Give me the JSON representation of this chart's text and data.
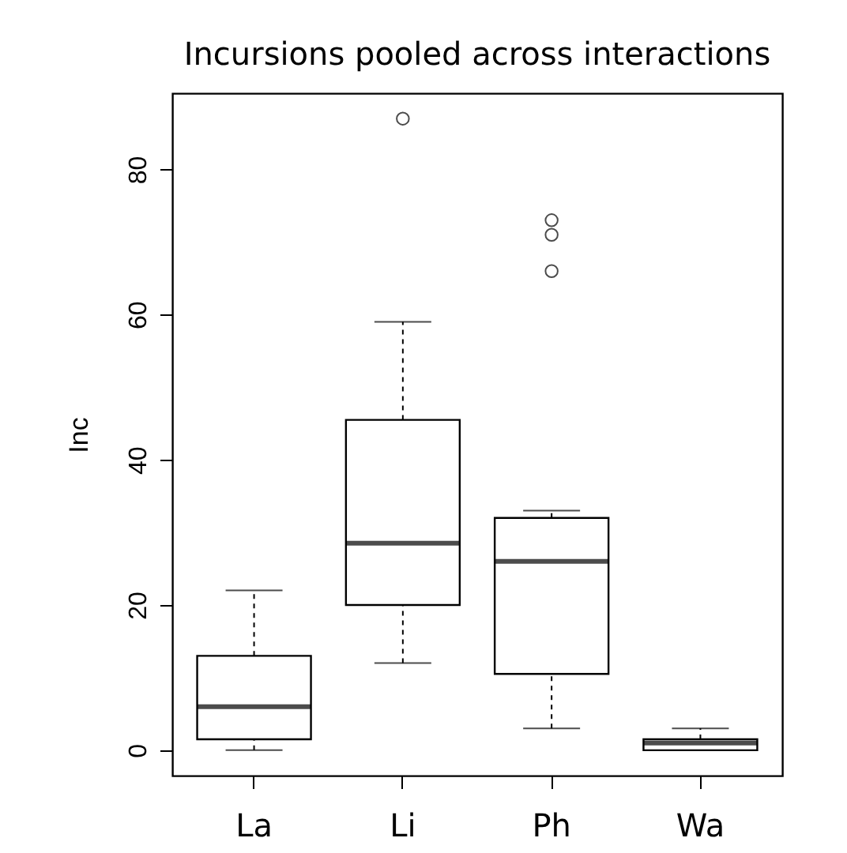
{
  "chart_data": {
    "type": "box",
    "title": "Incursions pooled across interactions",
    "ylabel": "Inc",
    "categories": [
      "La",
      "Li",
      "Ph",
      "Wa"
    ],
    "boxes": [
      {
        "low": 0,
        "q1": 1.5,
        "median": 6,
        "q3": 13,
        "high": 22
      },
      {
        "low": 12,
        "q1": 20,
        "median": 28.5,
        "q3": 45.5,
        "high": 59,
        "outliers": [
          87
        ]
      },
      {
        "low": 3,
        "q1": 10.5,
        "median": 26,
        "q3": 32,
        "high": 33,
        "outliers": [
          66,
          71,
          73
        ]
      },
      {
        "low": 0,
        "q1": 0,
        "median": 1,
        "q3": 1.5,
        "high": 3
      }
    ],
    "ylim": [
      -3.5,
      90.5
    ],
    "yticks": [
      0,
      20,
      40,
      60,
      80
    ],
    "marker": "circle",
    "line_style": "dashed",
    "color": "#000000",
    "grid": false
  }
}
